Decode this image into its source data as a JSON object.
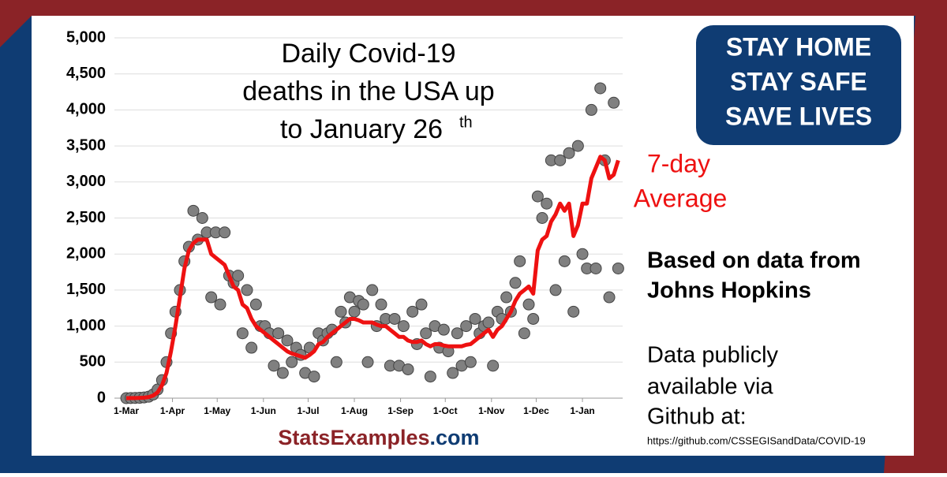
{
  "chart_data": {
    "type": "scatter",
    "title_lines": [
      "Daily Covid-19",
      "deaths in the USA up",
      "to January 26"
    ],
    "title_superscript": "th",
    "x": [
      "1-Mar",
      "4-Mar",
      "7-Mar",
      "10-Mar",
      "13-Mar",
      "16-Mar",
      "19-Mar",
      "22-Mar",
      "25-Mar",
      "28-Mar",
      "31-Mar",
      "3-Apr",
      "6-Apr",
      "9-Apr",
      "12-Apr",
      "15-Apr",
      "18-Apr",
      "21-Apr",
      "24-Apr",
      "27-Apr",
      "30-Apr",
      "3-May",
      "6-May",
      "9-May",
      "12-May",
      "15-May",
      "18-May",
      "21-May",
      "24-May",
      "27-May",
      "30-May",
      "2-Jun",
      "5-Jun",
      "8-Jun",
      "11-Jun",
      "14-Jun",
      "17-Jun",
      "20-Jun",
      "23-Jun",
      "26-Jun",
      "29-Jun",
      "2-Jul",
      "5-Jul",
      "8-Jul",
      "11-Jul",
      "14-Jul",
      "17-Jul",
      "20-Jul",
      "23-Jul",
      "26-Jul",
      "29-Jul",
      "1-Aug",
      "4-Aug",
      "7-Aug",
      "10-Aug",
      "13-Aug",
      "16-Aug",
      "19-Aug",
      "22-Aug",
      "25-Aug",
      "28-Aug",
      "31-Aug",
      "3-Sep",
      "6-Sep",
      "9-Sep",
      "12-Sep",
      "15-Sep",
      "18-Sep",
      "21-Sep",
      "24-Sep",
      "27-Sep",
      "30-Sep",
      "3-Oct",
      "6-Oct",
      "9-Oct",
      "12-Oct",
      "15-Oct",
      "18-Oct",
      "21-Oct",
      "24-Oct",
      "27-Oct",
      "30-Oct",
      "2-Nov",
      "5-Nov",
      "8-Nov",
      "11-Nov",
      "14-Nov",
      "17-Nov",
      "20-Nov",
      "23-Nov",
      "26-Nov",
      "29-Nov",
      "2-Dec",
      "5-Dec",
      "8-Dec",
      "11-Dec",
      "14-Dec",
      "17-Dec",
      "20-Dec",
      "23-Dec",
      "26-Dec",
      "29-Dec",
      "1-Jan",
      "4-Jan",
      "7-Jan",
      "10-Jan",
      "13-Jan",
      "16-Jan",
      "19-Jan",
      "22-Jan",
      "25-Jan"
    ],
    "series": [
      {
        "type": "scatter",
        "color": "#808080",
        "values": [
          0,
          2,
          3,
          5,
          10,
          20,
          50,
          120,
          250,
          500,
          900,
          1200,
          1500,
          1900,
          2100,
          2600,
          2200,
          2500,
          2300,
          1400,
          2300,
          1300,
          2300,
          1700,
          1600,
          1700,
          900,
          1500,
          700,
          1300,
          1000,
          1000,
          900,
          450,
          900,
          350,
          800,
          500,
          700,
          600,
          350,
          700,
          300,
          900,
          800,
          900,
          950,
          500,
          1200,
          1050,
          1400,
          1200,
          1350,
          1300,
          500,
          1500,
          1000,
          1300,
          1100,
          450,
          1100,
          450,
          1000,
          400,
          1200,
          750,
          1300,
          900,
          300,
          1000,
          700,
          950,
          650,
          350,
          900,
          450,
          1000,
          500,
          1100,
          900,
          1000,
          1050,
          450,
          1200,
          1100,
          1400,
          1200,
          1600,
          1900,
          900,
          1300,
          1100,
          2800,
          2500,
          2700,
          3300,
          1500,
          3300,
          1900,
          3400,
          1200,
          3500,
          2000,
          1800,
          4000,
          1800,
          4300,
          3300,
          1400,
          4100,
          1800
        ]
      },
      {
        "type": "line",
        "color": "#ee1111",
        "values": [
          0,
          1,
          2,
          4,
          7,
          15,
          35,
          80,
          180,
          350,
          650,
          1000,
          1400,
          1800,
          2050,
          2150,
          2200,
          2200,
          2200,
          2000,
          1950,
          1900,
          1850,
          1700,
          1550,
          1500,
          1300,
          1250,
          1100,
          1000,
          950,
          900,
          850,
          800,
          750,
          700,
          650,
          620,
          600,
          580,
          560,
          600,
          650,
          750,
          780,
          850,
          900,
          950,
          1000,
          1050,
          1100,
          1100,
          1080,
          1050,
          1050,
          1050,
          1020,
          1000,
          1000,
          950,
          900,
          850,
          850,
          800,
          780,
          780,
          800,
          750,
          720,
          750,
          750,
          730,
          720,
          720,
          720,
          720,
          740,
          750,
          800,
          850,
          900,
          950,
          850,
          950,
          1000,
          1100,
          1200,
          1350,
          1450,
          1500,
          1550,
          1450,
          2050,
          2200,
          2250,
          2450,
          2550,
          2700,
          2600,
          2700,
          2250,
          2400,
          2700,
          2700,
          3050,
          3200,
          3350,
          3300,
          3050,
          3100,
          3300
        ]
      }
    ],
    "xlim": [
      "1-Mar",
      "28-Jan"
    ],
    "xticks": [
      "1-Mar",
      "1-Apr",
      "1-May",
      "1-Jun",
      "1-Jul",
      "1-Aug",
      "1-Sep",
      "1-Oct",
      "1-Nov",
      "1-Dec",
      "1-Jan"
    ],
    "ylim": [
      0,
      5000
    ],
    "yticks": [
      0,
      {
        "value": 500,
        "label": "500"
      },
      {
        "value": 1000,
        "label": "1,000"
      },
      {
        "value": 1500,
        "label": "1,500"
      },
      {
        "value": 2000,
        "label": "2,000"
      },
      {
        "value": 2500,
        "label": "2,500"
      },
      {
        "value": 3000,
        "label": "3,000"
      },
      {
        "value": 3500,
        "label": "3,500"
      },
      {
        "value": 4000,
        "label": "4,000"
      },
      {
        "value": 4500,
        "label": "4,500"
      },
      {
        "value": 5000,
        "label": "5,000"
      }
    ],
    "grid": true,
    "annotation_lines": [
      "7-day",
      "Average"
    ]
  },
  "banner": {
    "lines": [
      "STAY HOME",
      "STAY SAFE",
      "SAVE LIVES"
    ]
  },
  "source": {
    "lines": [
      "Based on data from",
      "Johns Hopkins"
    ]
  },
  "availability": {
    "lines": [
      "Data publicly",
      "available via",
      "Github at:"
    ],
    "url": "https://github.com/CSSEGISandData/COVID-19"
  },
  "footer": {
    "brand": "StatsExamples",
    "suffix": ".com"
  }
}
